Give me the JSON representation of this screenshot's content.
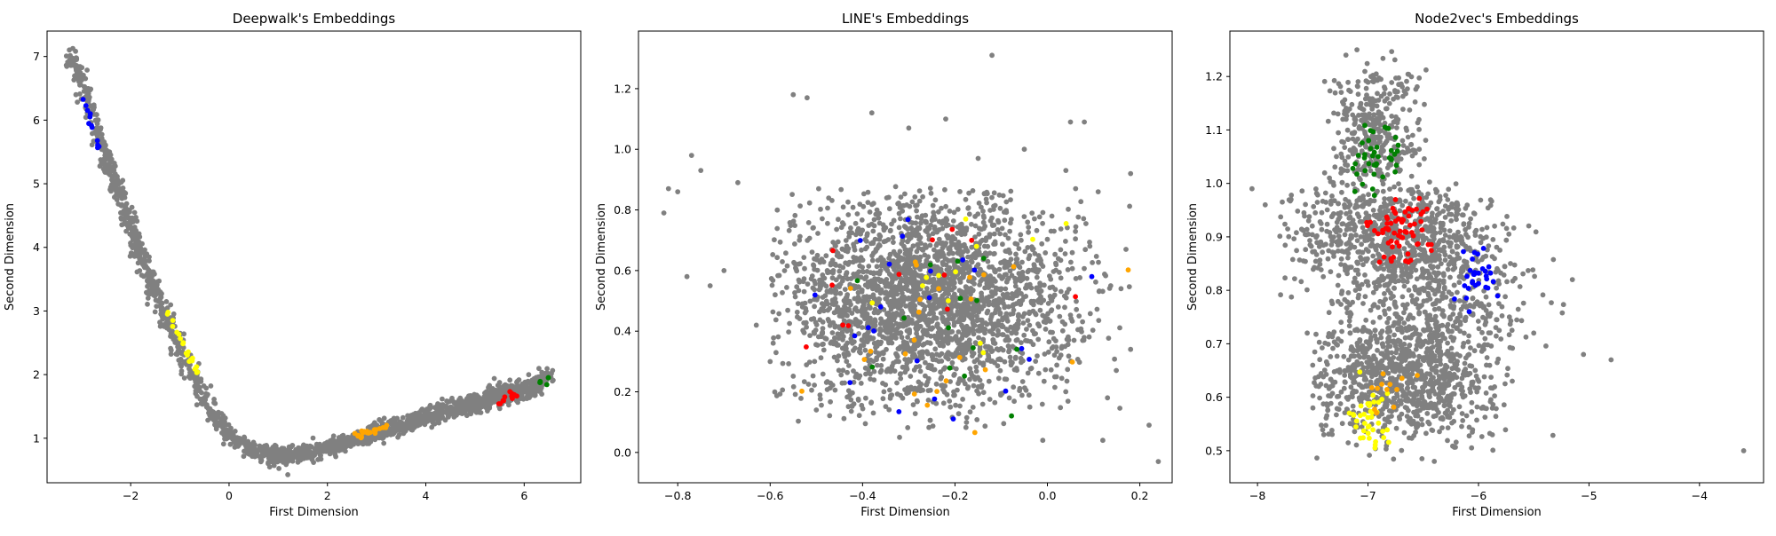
{
  "chart_data": [
    {
      "type": "scatter",
      "title": "Deepwalk's Embeddings",
      "xlabel": "First Dimension",
      "ylabel": "Second Dimension",
      "xlim": [
        -3.7,
        7.15
      ],
      "ylim": [
        0.3,
        7.4
      ],
      "xticks": [
        -2,
        0,
        2,
        4,
        6
      ],
      "yticks": [
        1,
        2,
        3,
        4,
        5,
        6,
        7
      ],
      "grid": false,
      "series": [
        {
          "color": "#808080",
          "shape": "curve",
          "points": [
            [
              -3.25,
              7.05
            ],
            [
              -3.0,
              6.6
            ],
            [
              -2.7,
              5.9
            ],
            [
              -2.3,
              5.0
            ],
            [
              -1.9,
              4.1
            ],
            [
              -1.5,
              3.3
            ],
            [
              -1.1,
              2.6
            ],
            [
              -0.7,
              1.9
            ],
            [
              -0.35,
              1.4
            ],
            [
              0.0,
              1.05
            ],
            [
              0.5,
              0.8
            ],
            [
              1.0,
              0.7
            ],
            [
              1.6,
              0.74
            ],
            [
              2.2,
              0.88
            ],
            [
              3.0,
              1.1
            ],
            [
              4.0,
              1.38
            ],
            [
              5.0,
              1.6
            ],
            [
              6.0,
              1.8
            ],
            [
              6.55,
              2.0
            ]
          ],
          "spread": 0.07,
          "count": 1400
        },
        {
          "color": "#808080",
          "shape": "curve",
          "points": [
            [
              0.3,
              0.82
            ],
            [
              1.0,
              0.77
            ],
            [
              2.0,
              0.86
            ],
            [
              3.0,
              1.06
            ],
            [
              4.0,
              1.3
            ],
            [
              5.2,
              1.52
            ],
            [
              6.3,
              1.75
            ]
          ],
          "spread": 0.05,
          "count": 500
        },
        {
          "color": "#0000ff",
          "shape": "curve",
          "points": [
            [
              -2.95,
              6.3
            ],
            [
              -2.6,
              5.45
            ]
          ],
          "spread": 0.03,
          "count": 12
        },
        {
          "color": "#ffff00",
          "shape": "curve",
          "points": [
            [
              -1.3,
              3.05
            ],
            [
              -0.6,
              1.95
            ]
          ],
          "spread": 0.03,
          "count": 20
        },
        {
          "color": "#ffa500",
          "shape": "curve",
          "points": [
            [
              2.4,
              1.0
            ],
            [
              3.2,
              1.18
            ]
          ],
          "spread": 0.03,
          "count": 22
        },
        {
          "color": "#ff0000",
          "shape": "curve",
          "points": [
            [
              5.4,
              1.58
            ],
            [
              5.95,
              1.7
            ]
          ],
          "spread": 0.03,
          "count": 12
        },
        {
          "color": "#008000",
          "shape": "curve",
          "points": [
            [
              6.3,
              1.86
            ],
            [
              6.5,
              1.94
            ]
          ],
          "spread": 0.02,
          "count": 6
        }
      ]
    },
    {
      "type": "scatter",
      "title": "LINE's Embeddings",
      "xlabel": "First Dimension",
      "ylabel": "Second Dimension",
      "xlim": [
        -0.885,
        0.27
      ],
      "ylim": [
        -0.1,
        1.39
      ],
      "xticks": [
        -0.8,
        -0.6,
        -0.4,
        -0.2,
        0.0,
        0.2
      ],
      "yticks": [
        0.0,
        0.2,
        0.4,
        0.6,
        0.8,
        1.0,
        1.2
      ],
      "grid": false,
      "series": [
        {
          "color": "#808080",
          "shape": "cloud",
          "center": [
            -0.26,
            0.5
          ],
          "sd": [
            0.16,
            0.17
          ],
          "clip": [
            -0.6,
            0.08,
            0.18,
            0.88
          ],
          "count": 2600
        },
        {
          "color": "#808080",
          "shape": "outliers",
          "points": [
            [
              -0.83,
              0.79
            ],
            [
              -0.82,
              0.87
            ],
            [
              -0.8,
              0.86
            ],
            [
              -0.77,
              0.98
            ],
            [
              -0.75,
              0.93
            ],
            [
              -0.78,
              0.58
            ],
            [
              -0.73,
              0.55
            ],
            [
              -0.67,
              0.89
            ],
            [
              -0.63,
              0.42
            ],
            [
              -0.55,
              1.18
            ],
            [
              -0.52,
              1.17
            ],
            [
              -0.38,
              1.12
            ],
            [
              -0.3,
              1.07
            ],
            [
              -0.22,
              1.1
            ],
            [
              -0.12,
              1.31
            ],
            [
              -0.15,
              0.97
            ],
            [
              -0.05,
              1.0
            ],
            [
              0.05,
              1.09
            ],
            [
              0.08,
              1.09
            ],
            [
              0.11,
              0.86
            ],
            [
              0.18,
              0.92
            ],
            [
              0.17,
              0.67
            ],
            [
              0.18,
              0.34
            ],
            [
              0.22,
              0.09
            ],
            [
              0.24,
              -0.03
            ],
            [
              0.12,
              0.04
            ],
            [
              -0.01,
              0.04
            ],
            [
              -0.32,
              0.05
            ],
            [
              -0.5,
              0.14
            ],
            [
              -0.6,
              0.3
            ],
            [
              0.13,
              0.18
            ],
            [
              -0.7,
              0.6
            ],
            [
              0.04,
              0.93
            ]
          ]
        },
        {
          "color": "#0000ff",
          "shape": "cloud",
          "center": [
            -0.3,
            0.45
          ],
          "sd": [
            0.14,
            0.18
          ],
          "clip": [
            -0.55,
            0.0,
            0.14,
            0.8
          ],
          "count": 22
        },
        {
          "color": "#ffa500",
          "shape": "cloud",
          "center": [
            -0.27,
            0.47
          ],
          "sd": [
            0.15,
            0.18
          ],
          "clip": [
            -0.57,
            0.05,
            0.2,
            0.85
          ],
          "count": 24
        },
        {
          "color": "#ffff00",
          "shape": "cloud",
          "center": [
            -0.25,
            0.6
          ],
          "sd": [
            0.15,
            0.17
          ],
          "clip": [
            -0.5,
            0.06,
            0.25,
            0.93
          ],
          "count": 12
        },
        {
          "color": "#ff0000",
          "shape": "cloud",
          "center": [
            -0.3,
            0.55
          ],
          "sd": [
            0.15,
            0.15
          ],
          "clip": [
            -0.58,
            0.02,
            0.3,
            0.78
          ],
          "count": 12
        },
        {
          "color": "#008000",
          "shape": "cloud",
          "center": [
            -0.3,
            0.5
          ],
          "sd": [
            0.15,
            0.18
          ],
          "clip": [
            -0.55,
            0.0,
            0.2,
            0.82
          ],
          "count": 14
        }
      ]
    },
    {
      "type": "scatter",
      "title": "Node2vec's Embeddings",
      "xlabel": "First Dimension",
      "ylabel": "Second Dimension",
      "xlim": [
        -8.25,
        -3.42
      ],
      "ylim": [
        0.44,
        1.285
      ],
      "xticks": [
        -8,
        -7,
        -6,
        -5,
        -4
      ],
      "yticks": [
        0.5,
        0.6,
        0.7,
        0.8,
        0.9,
        1.0,
        1.1,
        1.2
      ],
      "grid": false,
      "series": [
        {
          "color": "#808080",
          "shape": "cloud",
          "center": [
            -6.95,
            1.09
          ],
          "sd": [
            0.22,
            0.07
          ],
          "clip": [
            -7.4,
            1.0,
            -6.4,
            1.25
          ],
          "count": 350
        },
        {
          "color": "#808080",
          "shape": "cloud",
          "center": [
            -6.8,
            0.9
          ],
          "sd": [
            0.45,
            0.06
          ],
          "clip": [
            -7.8,
            0.75,
            -5.8,
            1.0
          ],
          "count": 700
        },
        {
          "color": "#808080",
          "shape": "cloud",
          "center": [
            -6.7,
            0.64
          ],
          "sd": [
            0.4,
            0.06
          ],
          "clip": [
            -7.5,
            0.48,
            -5.6,
            0.78
          ],
          "count": 900
        },
        {
          "color": "#808080",
          "shape": "cloud",
          "center": [
            -6.3,
            0.78
          ],
          "sd": [
            0.4,
            0.1
          ],
          "clip": [
            -7.3,
            0.52,
            -5.2,
            1.0
          ],
          "count": 500
        },
        {
          "color": "#808080",
          "shape": "outliers",
          "points": [
            [
              -8.05,
              0.99
            ],
            [
              -7.93,
              0.96
            ],
            [
              -7.55,
              0.72
            ],
            [
              -7.5,
              0.66
            ],
            [
              -7.4,
              0.53
            ],
            [
              -5.15,
              0.82
            ],
            [
              -5.05,
              0.68
            ],
            [
              -4.8,
              0.67
            ],
            [
              -3.6,
              0.5
            ],
            [
              -7.2,
              1.24
            ],
            [
              -7.1,
              1.25
            ],
            [
              -6.4,
              0.48
            ],
            [
              -5.5,
              0.72
            ]
          ]
        },
        {
          "color": "#008000",
          "shape": "cloud",
          "center": [
            -6.95,
            1.05
          ],
          "sd": [
            0.12,
            0.04
          ],
          "clip": [
            -7.2,
            0.96,
            -6.7,
            1.13
          ],
          "count": 40
        },
        {
          "color": "#ff0000",
          "shape": "cloud",
          "center": [
            -6.72,
            0.91
          ],
          "sd": [
            0.15,
            0.03
          ],
          "clip": [
            -7.05,
            0.85,
            -6.4,
            0.98
          ],
          "count": 65
        },
        {
          "color": "#0000ff",
          "shape": "cloud",
          "center": [
            -6.03,
            0.82
          ],
          "sd": [
            0.1,
            0.025
          ],
          "clip": [
            -6.3,
            0.76,
            -5.8,
            0.88
          ],
          "count": 30
        },
        {
          "color": "#ffff00",
          "shape": "cloud",
          "center": [
            -7.0,
            0.57
          ],
          "sd": [
            0.11,
            0.035
          ],
          "clip": [
            -7.2,
            0.48,
            -6.6,
            0.65
          ],
          "count": 40
        },
        {
          "color": "#ffa500",
          "shape": "cloud",
          "center": [
            -6.8,
            0.63
          ],
          "sd": [
            0.15,
            0.03
          ],
          "clip": [
            -7.05,
            0.52,
            -6.5,
            0.67
          ],
          "count": 12
        }
      ]
    }
  ]
}
